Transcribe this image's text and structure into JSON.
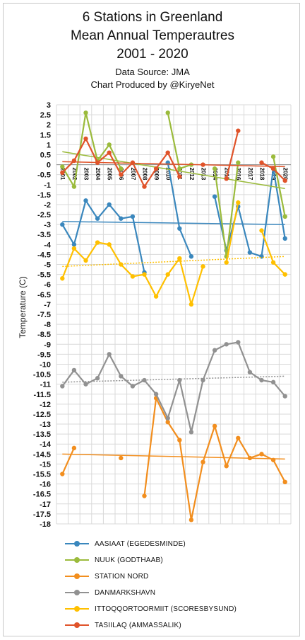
{
  "title": {
    "line1": "6 Stations in Greenland",
    "line2": "Mean Annual Temperautres",
    "line3": "2001 - 2020",
    "source": "Data Source: JMA",
    "credit": "Chart Produced by @KiryeNet"
  },
  "chart_data": {
    "type": "line",
    "ylabel": "Temperature (C)",
    "ylim": [
      -18,
      3
    ],
    "yticks": [
      3,
      2.5,
      2,
      1.5,
      1,
      0.5,
      0,
      -0.5,
      -1,
      -1.5,
      -2,
      -2.5,
      -3,
      -3.5,
      -4,
      -4.5,
      -5,
      -5.5,
      -6,
      -6.5,
      -7,
      -7.5,
      -8,
      -8.5,
      -9,
      -9.5,
      -10,
      -10.5,
      -11,
      -11.5,
      -12,
      -12.5,
      -13,
      -13.5,
      -14,
      -14.5,
      -15,
      -15.5,
      -16,
      -16.5,
      -17,
      -17.5,
      -18
    ],
    "x": [
      "2001",
      "2002",
      "2003",
      "2004",
      "2005",
      "2006",
      "2007",
      "2008",
      "2009",
      "2010",
      "2011",
      "2012",
      "2013",
      "2014",
      "2015",
      "2016",
      "2017",
      "2018",
      "2019",
      "2020"
    ],
    "grid": true,
    "legend_position": "bottom",
    "series": [
      {
        "name": "AASIAAT (EGEDESMINDE)",
        "color": "#3a87bd",
        "values": [
          -3.0,
          -4.0,
          -1.8,
          -2.7,
          -2.0,
          -2.7,
          -2.6,
          -5.4,
          null,
          0.1,
          -3.2,
          -4.6,
          null,
          -1.6,
          -4.3,
          -2.1,
          -4.4,
          -4.6,
          -0.2,
          -3.7
        ],
        "trend": [
          -2.85,
          -3.0
        ]
      },
      {
        "name": "NUUK (GODTHAAB)",
        "color": "#9bbb3c",
        "values": [
          -0.1,
          -1.1,
          2.6,
          0.2,
          1.0,
          -0.2,
          null,
          null,
          null,
          2.6,
          -0.2,
          0.0,
          null,
          -0.2,
          -4.6,
          0.1,
          null,
          null,
          0.4,
          -2.6
        ],
        "trend": [
          0.65,
          -1.2
        ]
      },
      {
        "name": "STATION NORD",
        "color": "#f28e1e",
        "values": [
          -15.5,
          -14.2,
          null,
          null,
          null,
          -14.7,
          null,
          -16.6,
          -11.7,
          -12.9,
          -13.8,
          -17.8,
          -14.9,
          -13.1,
          -15.1,
          -13.7,
          -14.7,
          -14.5,
          -14.8,
          -15.9
        ],
        "trend": [
          -14.5,
          -14.75
        ]
      },
      {
        "name": "DANMARKSHAVN",
        "color": "#919191",
        "values": [
          -11.1,
          -10.3,
          -11.0,
          -10.7,
          -9.5,
          -10.6,
          -11.1,
          -10.8,
          -11.5,
          -12.7,
          -10.8,
          -13.4,
          -10.8,
          -9.3,
          -9.0,
          -8.9,
          -10.4,
          -10.8,
          -10.9,
          -11.6
        ],
        "trend": [
          -10.9,
          -10.6
        ]
      },
      {
        "name": "ITTOQQORTOORMIIT (SCORESBYSUND)",
        "color": "#ffc000",
        "values": [
          -5.7,
          -4.2,
          -4.8,
          -3.9,
          -4.0,
          -5.0,
          -5.6,
          -5.5,
          -6.6,
          -5.5,
          -4.7,
          -7.0,
          -5.1,
          null,
          -4.9,
          -1.9,
          null,
          -3.3,
          -4.9,
          -5.5
        ],
        "trend": [
          -5.1,
          -4.6
        ]
      },
      {
        "name": "TASIILAQ (AMMASSALIK)",
        "color": "#e0532a",
        "values": [
          -0.4,
          0.2,
          1.3,
          0.1,
          0.6,
          -0.5,
          0.1,
          -1.1,
          -0.2,
          0.6,
          -0.6,
          null,
          0.0,
          null,
          -0.7,
          1.7,
          null,
          0.1,
          -0.2,
          -0.8
        ],
        "trend": [
          0.15,
          -0.1
        ]
      }
    ]
  }
}
